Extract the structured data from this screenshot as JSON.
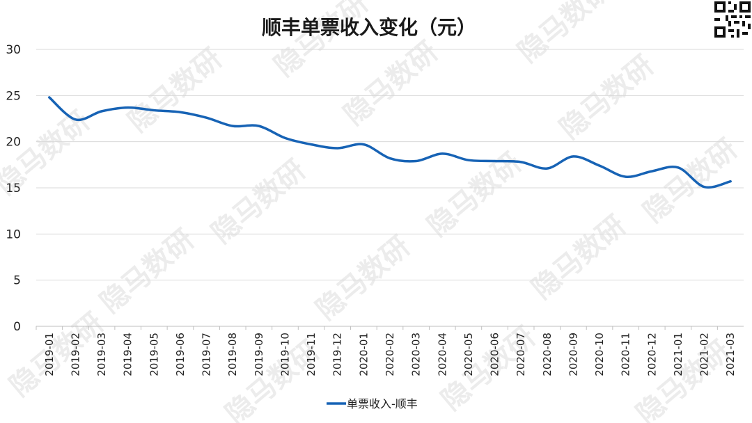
{
  "watermark_text": "隐马数研",
  "chart_data": {
    "type": "line",
    "title": "顺丰单票收入变化（元）",
    "categories": [
      "2019-01",
      "2019-02",
      "2019-03",
      "2019-04",
      "2019-05",
      "2019-06",
      "2019-07",
      "2019-08",
      "2019-09",
      "2019-10",
      "2019-11",
      "2019-12",
      "2020-01",
      "2020-02",
      "2020-03",
      "2020-04",
      "2020-05",
      "2020-06",
      "2020-07",
      "2020-08",
      "2020-09",
      "2020-10",
      "2020-11",
      "2020-12",
      "2021-01",
      "2021-02",
      "2021-03"
    ],
    "series": [
      {
        "name": "单票收入-顺丰",
        "color": "#1763b5",
        "values": [
          24.8,
          22.4,
          23.3,
          23.7,
          23.4,
          23.2,
          22.6,
          21.7,
          21.7,
          20.4,
          19.7,
          19.3,
          19.7,
          18.2,
          17.9,
          18.7,
          18.0,
          17.9,
          17.8,
          17.1,
          18.4,
          17.4,
          16.2,
          16.8,
          17.2,
          15.1,
          15.7
        ]
      }
    ],
    "y_ticks": [
      "0",
      "5",
      "10",
      "15",
      "20",
      "25",
      "30"
    ],
    "ylim": [
      0,
      30
    ],
    "grid": true,
    "legend_position": "bottom"
  }
}
